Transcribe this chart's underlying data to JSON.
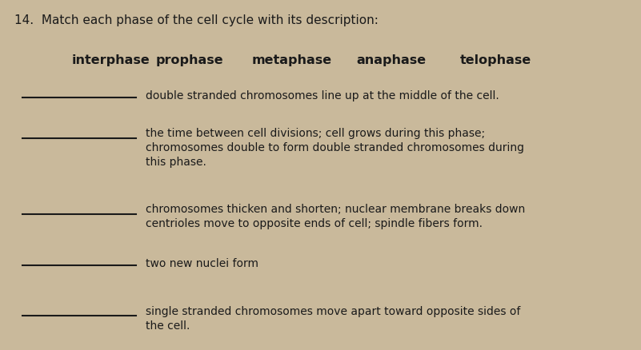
{
  "background_color": "#c9b99b",
  "title": "14.  Match each phase of the cell cycle with its description:",
  "title_fontsize": 11.0,
  "title_fontweight": "normal",
  "title_color": "#1a1a1a",
  "word_bank": [
    "interphase",
    "prophase",
    "metaphase",
    "anaphase",
    "telophase"
  ],
  "word_bank_fontsize": 11.5,
  "word_bank_fontweight": "bold",
  "word_bank_color": "#1a1a1a",
  "line_color": "#1a1a1a",
  "line_width": 1.5,
  "desc_fontsize": 10.0,
  "desc_color": "#1a1a1a"
}
